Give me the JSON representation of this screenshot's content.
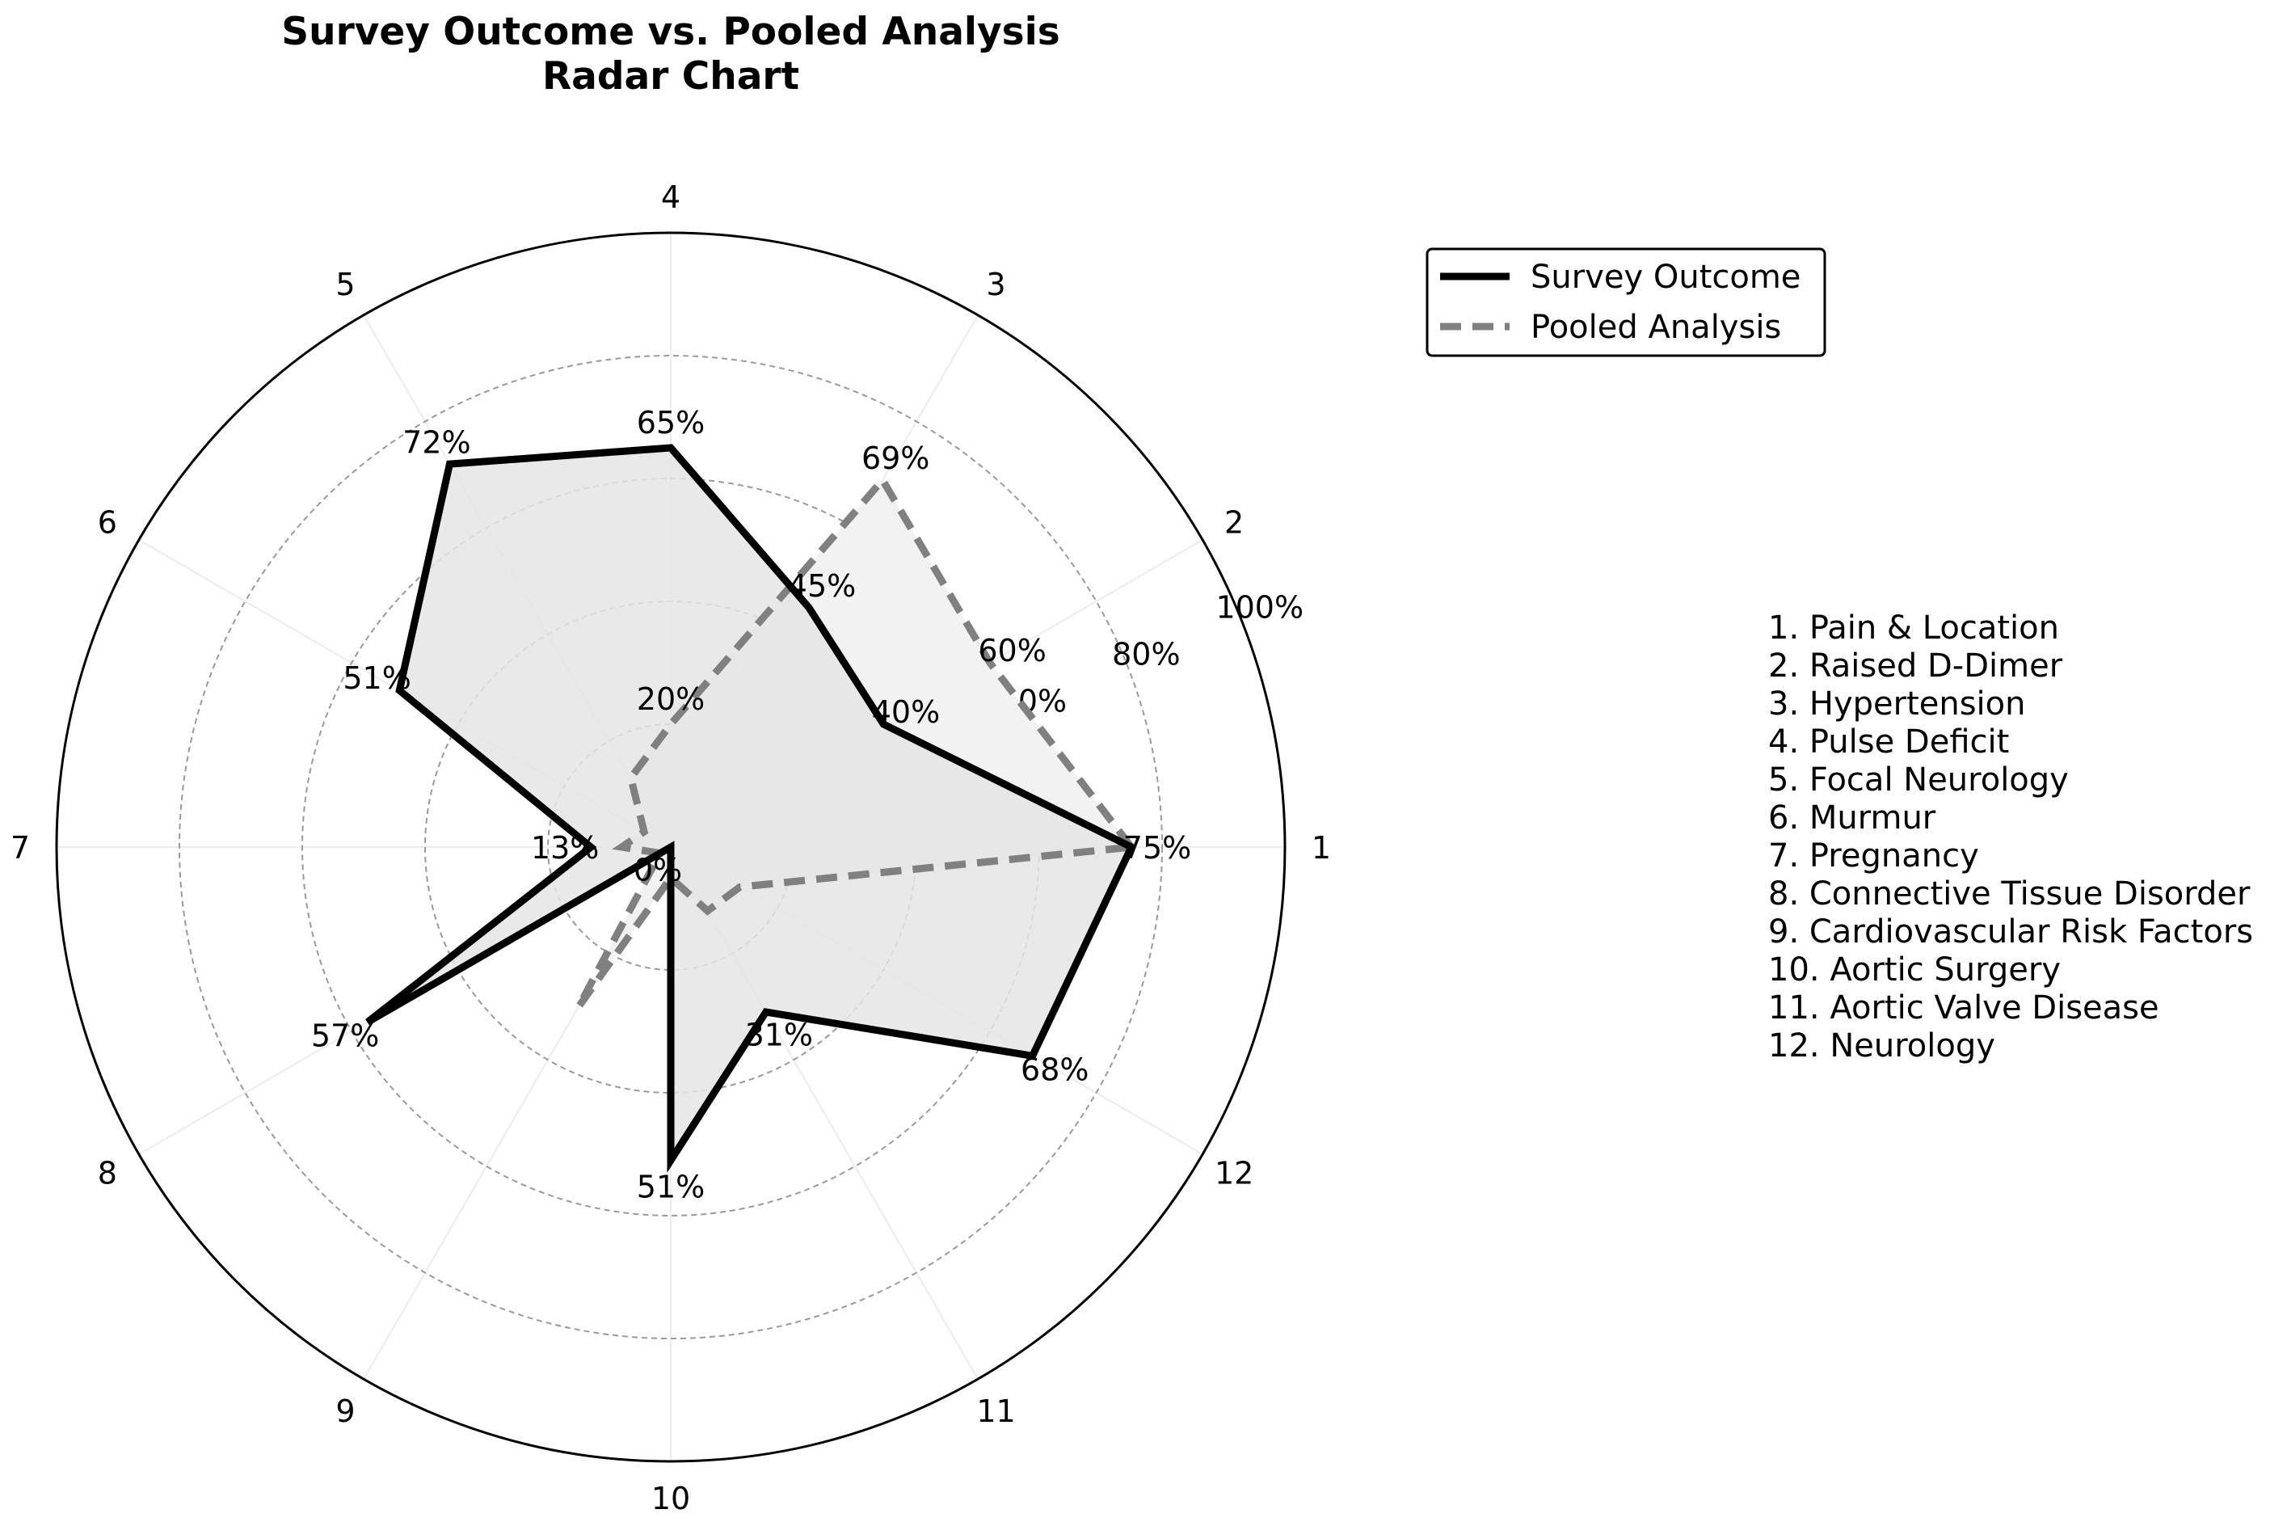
{
  "chart_data": {
    "type": "radar",
    "title": "Survey Outcome vs. Pooled Analysis",
    "subtitle": "Radar Chart",
    "categories": [
      "1",
      "2",
      "3",
      "4",
      "5",
      "6",
      "7",
      "8",
      "9",
      "10",
      "11",
      "12"
    ],
    "category_names": [
      "1. Pain & Location",
      "2. Raised D-Dimer",
      "3. Hypertension",
      "4. Pulse Deficit",
      "5. Focal Neurology",
      "6. Murmur",
      "7. Pregnancy",
      "8. Connective Tissue Disorder",
      "9. Cardiovascular Risk Factors",
      "10. Aortic Surgery",
      "11. Aortic Valve Disease",
      "12. Neurology"
    ],
    "series": [
      {
        "name": "Survey Outcome",
        "values": [
          75,
          40,
          45,
          65,
          72,
          51,
          13,
          57,
          0,
          51,
          31,
          68
        ],
        "labels": [
          "75%",
          "40%",
          "45%",
          "65%",
          "72%",
          "51%",
          "13%",
          "57%",
          "0%",
          "51%",
          "31%",
          "68%"
        ],
        "color": "#000000",
        "fill": "#e5e5e5",
        "style": "solid"
      },
      {
        "name": "Pooled Analysis",
        "values": [
          75,
          60,
          69,
          20,
          13,
          5,
          8,
          2,
          30,
          5,
          12,
          13
        ],
        "labels": [
          "",
          "60%",
          "69%",
          "20%",
          "",
          "",
          "",
          "",
          "",
          "",
          "",
          ""
        ],
        "color": "#808080",
        "fill": "#f2f2f2",
        "style": "dashed"
      }
    ],
    "rlim": [
      0,
      100
    ],
    "rticks": [
      "20%",
      "40%",
      "60%",
      "80%",
      "100%"
    ],
    "grid": true,
    "legend_position": "top-right"
  }
}
